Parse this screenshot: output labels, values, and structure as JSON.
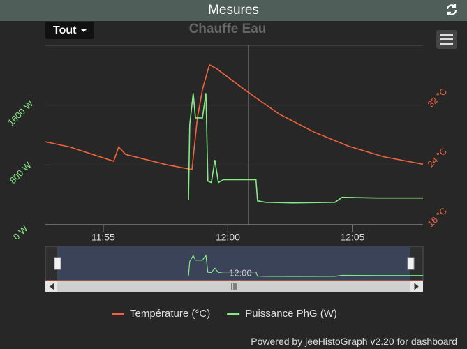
{
  "header": {
    "title": "Mesures"
  },
  "range_button": "Tout",
  "footer": "Powered by jeeHistoGraph v2.20 for dashboard",
  "chart_data": {
    "type": "line",
    "title": "Chauffe Eau",
    "xlim": [
      712.68,
      727.83
    ],
    "xticks": [
      {
        "value": 715,
        "label": "11:55"
      },
      {
        "value": 720,
        "label": "12:00"
      },
      {
        "value": 725,
        "label": "12:05"
      }
    ],
    "ylim": [
      0,
      2400
    ],
    "yticks": [
      {
        "value": 0,
        "label": "0 W"
      },
      {
        "value": 800,
        "label": "800 W"
      },
      {
        "value": 1600,
        "label": "1600 W"
      }
    ],
    "y2lim": [
      16,
      40
    ],
    "y2ticks": [
      {
        "value": 16,
        "label": "16 °C"
      },
      {
        "value": 24,
        "label": "24 °C"
      },
      {
        "value": 32,
        "label": "32 °C"
      }
    ],
    "grid": true,
    "legend": "bottom",
    "series": [
      {
        "name": "Température (°C)",
        "color": "#f0643c",
        "axis": "y2",
        "x": [
          712.68,
          713.66,
          715.42,
          715.62,
          715.9,
          716.74,
          717.58,
          718.56,
          718.78,
          718.98,
          719.26,
          719.54,
          720.66,
          722.06,
          723.46,
          724.86,
          726.26,
          727.83
        ],
        "values": [
          27.1,
          26.4,
          24.5,
          26.4,
          25.4,
          24.7,
          24.0,
          23.4,
          30.3,
          34.1,
          37.4,
          36.9,
          34.1,
          30.8,
          28.4,
          26.5,
          25.1,
          24.1
        ]
      },
      {
        "name": "Puissance PhG (W)",
        "color": "#86ea86",
        "x": [
          718.42,
          718.47,
          718.61,
          718.7,
          718.98,
          719.12,
          719.2,
          719.34,
          719.48,
          719.62,
          719.82,
          720.38,
          721.13,
          721.19,
          721.5,
          722.62,
          724.3,
          724.58,
          725.98,
          727.83
        ],
        "values": [
          330,
          1336,
          1760,
          1430,
          1430,
          1760,
          583,
          565,
          866,
          565,
          602,
          602,
          602,
          320,
          301,
          292,
          301,
          367,
          358,
          358
        ]
      }
    ]
  }
}
